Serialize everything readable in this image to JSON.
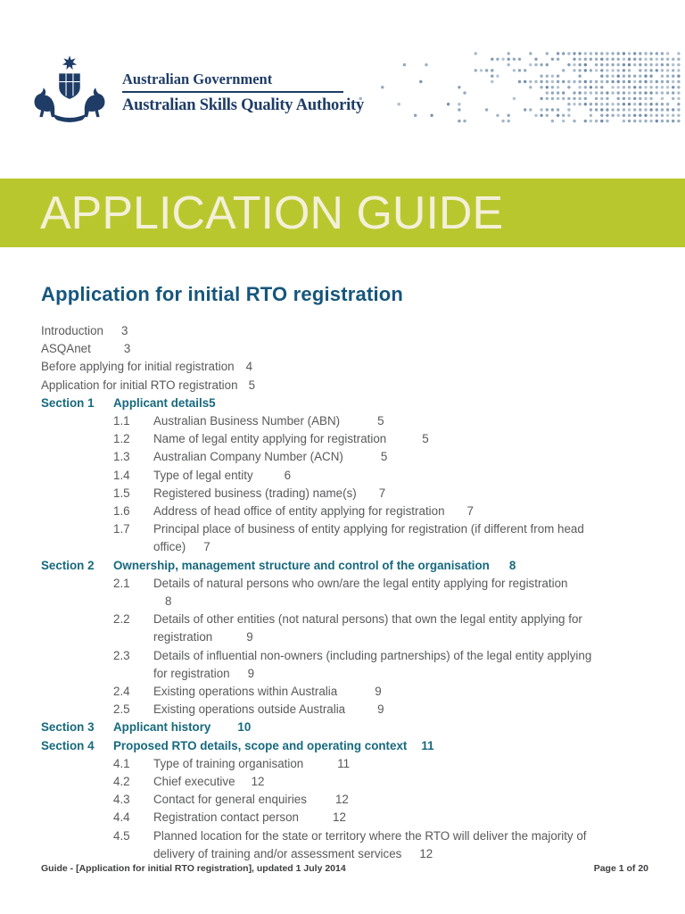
{
  "header": {
    "gov_line1": "Australian Government",
    "gov_line2": "Australian Skills Quality Authority",
    "crest_icon": "australian-coat-of-arms",
    "dot_pattern_icon": "dot-matrix-decoration"
  },
  "banner": {
    "title": "APPLICATION GUIDE"
  },
  "document": {
    "title": "Application for initial RTO registration"
  },
  "toc": {
    "rows": [
      {
        "type": "plain",
        "lines": [
          [
            {
              "t": "Introduction"
            },
            {
              "t": "3",
              "g": 20
            }
          ]
        ]
      },
      {
        "type": "plain",
        "lines": [
          [
            {
              "t": "ASQAnet"
            },
            {
              "t": "3",
              "g": 37
            }
          ]
        ]
      },
      {
        "type": "plain",
        "lines": [
          [
            {
              "t": "Before applying for initial registration"
            },
            {
              "t": "4",
              "g": 13
            }
          ]
        ]
      },
      {
        "type": "plain",
        "lines": [
          [
            {
              "t": "Application for initial RTO registration"
            },
            {
              "t": "5",
              "g": 12
            }
          ]
        ]
      },
      {
        "type": "section",
        "label": "Section 1",
        "lines": [
          [
            {
              "t": "Applicant details"
            },
            {
              "t": "5",
              "g": 0
            }
          ]
        ]
      },
      {
        "type": "item",
        "num": "1.1",
        "lines": [
          [
            {
              "t": "Australian Business Number (ABN)"
            },
            {
              "t": "5",
              "g": 42
            }
          ]
        ]
      },
      {
        "type": "item",
        "num": "1.2",
        "lines": [
          [
            {
              "t": "Name of legal entity applying for registration"
            },
            {
              "t": "5",
              "g": 40
            }
          ]
        ]
      },
      {
        "type": "item",
        "num": "1.3",
        "lines": [
          [
            {
              "t": "Australian Company Number (ACN)"
            },
            {
              "t": "5",
              "g": 42
            }
          ]
        ]
      },
      {
        "type": "item",
        "num": "1.4",
        "lines": [
          [
            {
              "t": "Type of legal entity"
            },
            {
              "t": "6",
              "g": 35
            }
          ]
        ]
      },
      {
        "type": "item",
        "num": "1.5",
        "lines": [
          [
            {
              "t": "Registered business (trading) name(s)"
            },
            {
              "t": "7",
              "g": 25
            }
          ]
        ]
      },
      {
        "type": "item",
        "num": "1.6",
        "lines": [
          [
            {
              "t": "Address of head office of entity applying for registration"
            },
            {
              "t": "7",
              "g": 25
            }
          ]
        ]
      },
      {
        "type": "item",
        "num": "1.7",
        "lines": [
          [
            {
              "t": "Principal place of business of entity applying for registration (if different from head"
            }
          ],
          [
            {
              "t": "office)"
            },
            {
              "t": "7",
              "g": 20
            }
          ]
        ]
      },
      {
        "type": "section",
        "label": "Section 2",
        "lines": [
          [
            {
              "t": "Ownership, management structure and control of the organisation"
            },
            {
              "t": "8",
              "g": 22
            }
          ]
        ]
      },
      {
        "type": "item",
        "num": "2.1",
        "lines": [
          [
            {
              "t": "Details of natural persons who own/are the legal entity applying for registration"
            }
          ],
          [
            {
              "t": "8",
              "g": 13
            }
          ]
        ]
      },
      {
        "type": "item",
        "num": "2.2",
        "lines": [
          [
            {
              "t": "Details of other entities (not natural persons) that own the legal entity applying for"
            }
          ],
          [
            {
              "t": "registration"
            },
            {
              "t": "9",
              "g": 38
            }
          ]
        ]
      },
      {
        "type": "item",
        "num": "2.3",
        "lines": [
          [
            {
              "t": "Details of influential non-owners (including partnerships) of the legal entity applying"
            }
          ],
          [
            {
              "t": "for registration"
            },
            {
              "t": "9",
              "g": 20
            }
          ]
        ]
      },
      {
        "type": "item",
        "num": "2.4",
        "lines": [
          [
            {
              "t": "Existing operations within Australia"
            },
            {
              "t": "9",
              "g": 42
            }
          ]
        ]
      },
      {
        "type": "item",
        "num": "2.5",
        "lines": [
          [
            {
              "t": "Existing operations outside Australia"
            },
            {
              "t": "9",
              "g": 36
            }
          ]
        ]
      },
      {
        "type": "section",
        "label": "Section 3",
        "lines": [
          [
            {
              "t": "Applicant history"
            },
            {
              "t": "10",
              "g": 30
            }
          ]
        ]
      },
      {
        "type": "section",
        "label": "Section 4",
        "lines": [
          [
            {
              "t": "Proposed RTO details, scope and operating context"
            },
            {
              "t": "11",
              "g": 16
            }
          ]
        ]
      },
      {
        "type": "item",
        "num": "4.1",
        "lines": [
          [
            {
              "t": "Type of training organisation"
            },
            {
              "t": "11",
              "g": 38
            }
          ]
        ]
      },
      {
        "type": "item",
        "num": "4.2",
        "lines": [
          [
            {
              "t": "Chief executive"
            },
            {
              "t": "12",
              "g": 18
            }
          ]
        ]
      },
      {
        "type": "item",
        "num": "4.3",
        "lines": [
          [
            {
              "t": "Contact for general enquiries"
            },
            {
              "t": "12",
              "g": 32
            }
          ]
        ]
      },
      {
        "type": "item",
        "num": "4.4",
        "lines": [
          [
            {
              "t": "Registration contact person"
            },
            {
              "t": "12",
              "g": 38
            }
          ]
        ]
      },
      {
        "type": "item",
        "num": "4.5",
        "lines": [
          [
            {
              "t": "Planned location for the state or territory where the RTO will deliver the majority of"
            }
          ],
          [
            {
              "t": "delivery of training and/or assessment services"
            },
            {
              "t": "12",
              "g": 20
            }
          ]
        ]
      }
    ]
  },
  "footer": {
    "left": "Guide - [Application for initial RTO registration], updated 1 July 2014",
    "right": "Page 1 of 20"
  },
  "colors": {
    "banner_green": "#b9c72e",
    "banner_text": "#f3f0d8",
    "title_teal": "#16567c",
    "section_teal": "#17697e",
    "body_gray": "#58595b",
    "logo_navy": "#1e3c66",
    "dot_blue": "#8396ac"
  }
}
